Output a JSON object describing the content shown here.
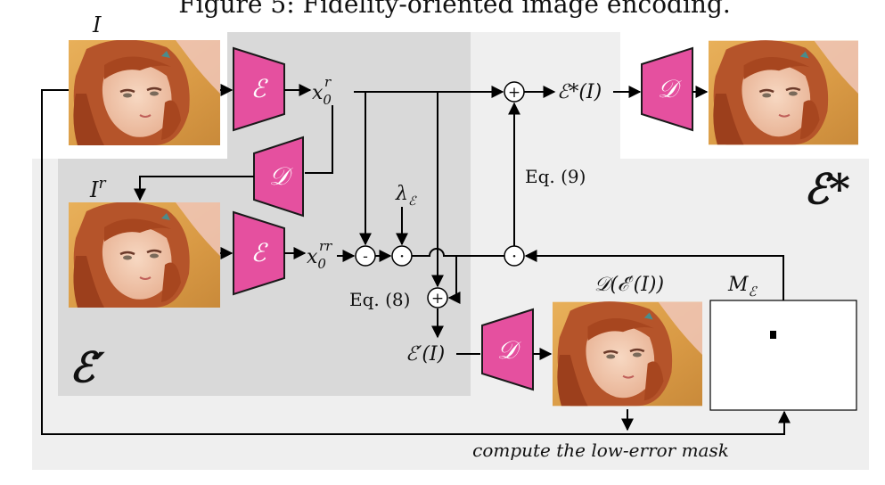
{
  "figure": {
    "caption": "Figure 5: Fidelity-oriented image encoding."
  },
  "labels": {
    "input_image": "I",
    "recon_image": "I",
    "recon_image_sup": "r",
    "x0_r_base": "x",
    "x0_r_sub": "0",
    "x0_r_sup": "r",
    "x0_rr_base": "x",
    "x0_rr_sub": "0",
    "x0_rr_sup": "rr",
    "encoder_symbol": "ℰ",
    "decoder_symbol": "𝒟",
    "lambda": "λ",
    "lambda_sub": "ℰ",
    "eq8": "Eq. (8)",
    "eq9": "Eq. (9)",
    "e_star_output": "ℰ*(I)",
    "e_prime_output": "ℰ′(I)",
    "d_e_prime": "𝒟(ℰ′(I))",
    "mask_label": "M",
    "mask_sub": "ℰ",
    "region_e_prime": "ℰ′",
    "region_e_star": "ℰ*",
    "mask_caption": "compute the low-error mask",
    "op_plus": "+",
    "op_minus": "-",
    "op_dot": "·"
  },
  "colors": {
    "block_fill": "#e5509f",
    "block_stroke": "#1a1a1a",
    "region_e_prime_bg": "#d9d9d9",
    "region_e_star_bg": "#efefef",
    "line": "#000000"
  },
  "icons": {
    "photo": "portrait-photo-icon",
    "encoder": "encoder-trapezoid-icon",
    "decoder": "decoder-trapezoid-icon"
  }
}
